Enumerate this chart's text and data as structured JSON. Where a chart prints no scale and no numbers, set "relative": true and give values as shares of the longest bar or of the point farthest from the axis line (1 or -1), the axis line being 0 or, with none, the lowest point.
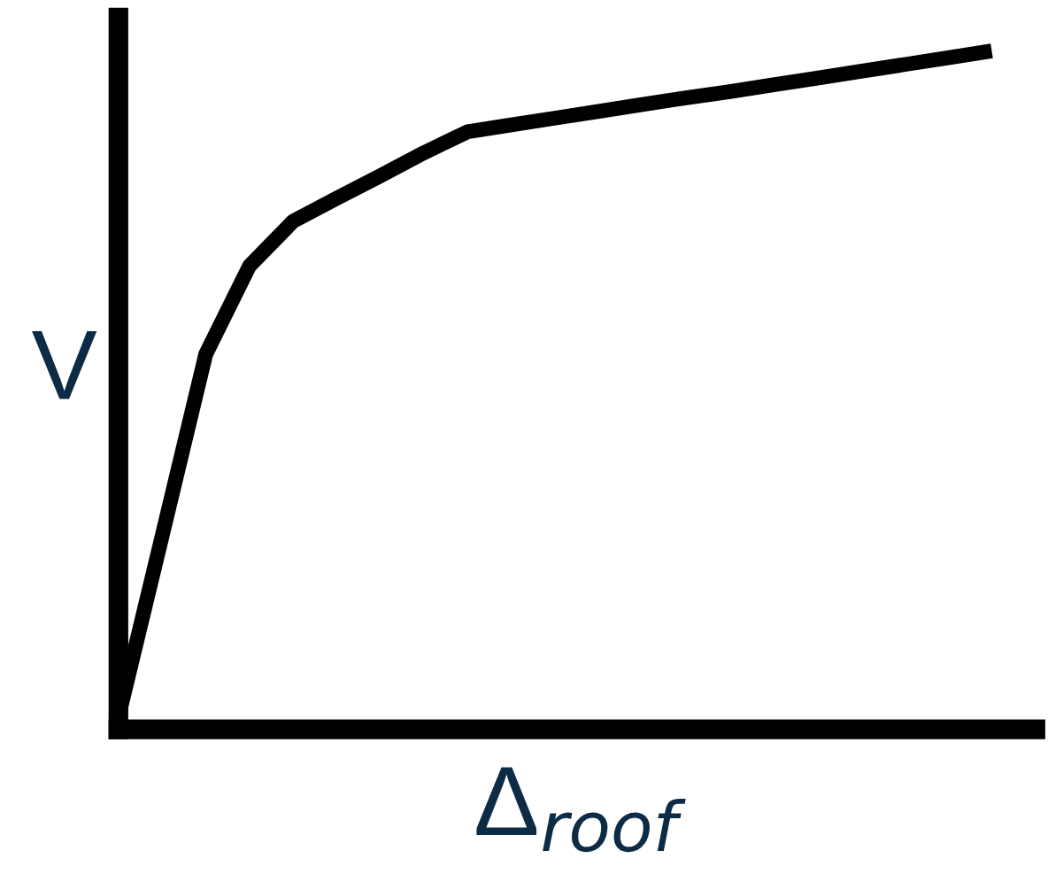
{
  "chart_data": {
    "type": "line",
    "relative": true,
    "xlabel": "Δ$_{roof}$",
    "ylabel": "V",
    "categories": [
      null,
      null,
      null,
      null,
      null,
      null,
      null,
      null,
      null,
      null,
      null,
      null,
      null,
      null,
      null,
      null,
      null,
      null,
      null,
      null,
      null
    ],
    "series": [
      {
        "color": "#000000",
        "values": [
          0.018,
          0.285,
          0.553,
          0.683,
          0.749,
          0.783,
          0.816,
          0.85,
          0.881,
          0.891,
          0.901,
          0.911,
          0.921,
          0.931,
          0.94,
          0.95,
          0.96,
          0.97,
          0.98,
          0.99,
          1.0
        ]
      }
    ],
    "marker": "none",
    "line_style": "solid"
  }
}
